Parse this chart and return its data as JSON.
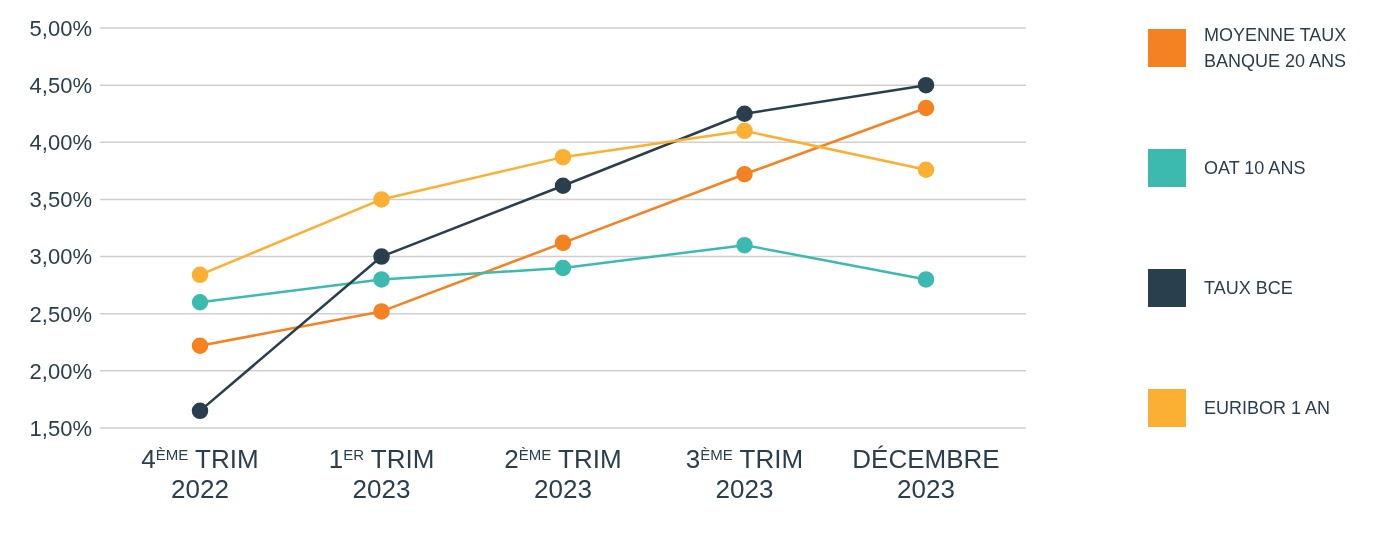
{
  "chart_data": {
    "type": "line",
    "categories": [
      "4$^{ÈME}$ TRIM 2022",
      "1$^{ER}$ TRIM 2023",
      "2$^{ÈME}$ TRIM 2023",
      "3$^{ÈME}$ TRIM 2023",
      "DÉCEMBRE 2023"
    ],
    "series": [
      {
        "name": "MOYENNE TAUX BANQUE 20 ANS",
        "color": "#f58220",
        "values": [
          2.22,
          2.52,
          3.12,
          3.72,
          4.3
        ]
      },
      {
        "name": "OAT 10 ANS",
        "color": "#3dbab0",
        "values": [
          2.6,
          2.8,
          2.9,
          3.1,
          2.8
        ]
      },
      {
        "name": "TAUX BCE",
        "color": "#2a3f4d",
        "values": [
          1.65,
          3.0,
          3.62,
          4.25,
          4.5
        ]
      },
      {
        "name": "EURIBOR 1 AN",
        "color": "#fbb034",
        "values": [
          2.84,
          3.5,
          3.87,
          4.1,
          3.76
        ]
      }
    ],
    "ylim": [
      1.5,
      5
    ],
    "yticks": [
      {
        "value": 1.5,
        "label": "1,50%"
      },
      {
        "value": 2,
        "label": "2,00%"
      },
      {
        "value": 2.5,
        "label": "2,50%"
      },
      {
        "value": 3,
        "label": "3,00%"
      },
      {
        "value": 3.5,
        "label": "3,50%"
      },
      {
        "value": 4,
        "label": "4,00%"
      },
      {
        "value": 4.5,
        "label": "4,50%"
      },
      {
        "value": 5,
        "label": "5,00%"
      }
    ],
    "grid": "y",
    "legend": "right",
    "marker": "circle",
    "line_style": "solid"
  }
}
